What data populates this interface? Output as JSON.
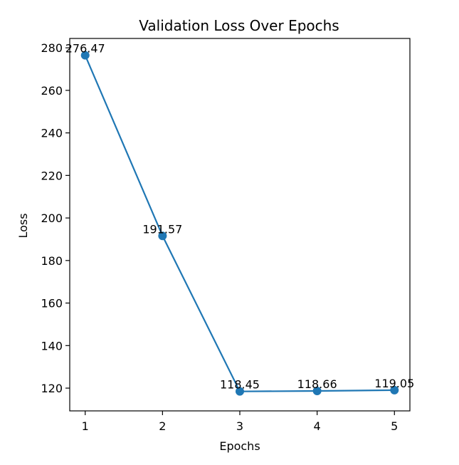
{
  "chart_data": {
    "type": "line",
    "title": "Validation Loss Over Epochs",
    "xlabel": "Epochs",
    "ylabel": "Loss",
    "x": [
      1,
      2,
      3,
      4,
      5
    ],
    "series": [
      {
        "values": [
          276.47,
          191.57,
          118.45,
          118.66,
          119.05
        ],
        "labels": [
          "276.47",
          "191.57",
          "118.45",
          "118.66",
          "119.05"
        ],
        "color": "#1f77b4",
        "marker": "circle"
      }
    ],
    "xticks": [
      1,
      2,
      3,
      4,
      5
    ],
    "yticks": [
      120,
      140,
      160,
      180,
      200,
      220,
      240,
      260,
      280
    ],
    "xlim": [
      0.8,
      5.2
    ],
    "ylim": [
      109.3,
      284.4
    ],
    "grid": false,
    "legend": "none"
  }
}
